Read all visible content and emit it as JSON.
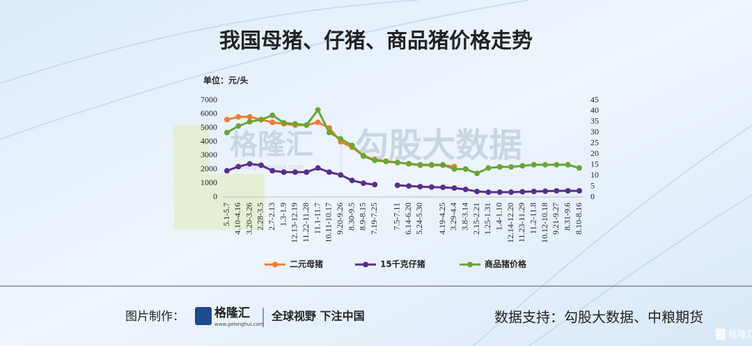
{
  "chart_data": {
    "type": "line",
    "title": "我国母猪、仔猪、商品猪价格走势",
    "unit_label": "单位：元/头",
    "categories": [
      "5.1-5.7",
      "4.10-4.16",
      "3.20-3.26",
      "2.28-3.5",
      "2.7-2.13",
      "1.3-1.9",
      "12.13-12.19",
      "11.22-11.28",
      "11.1-11.7",
      "10.11-10.17",
      "9.20-9.26",
      "8.30-9.5",
      "8.9-8.15",
      "7.19-7.25",
      null,
      "7.5-7.11",
      "6.14-6.20",
      "5.24-5.30",
      null,
      "4.19-4.25",
      "3.29-4.4",
      "3.8-3.14",
      "2.15-2.21",
      "1.25-1.31",
      "1.4-1.10",
      "12.14-12.20",
      "11.23-11.29",
      "11.2-11.8",
      "10.12-10.18",
      "9.21-9.27",
      "8.31-9.6",
      "8.10-8.16"
    ],
    "series": [
      {
        "name": "二元母猪",
        "color": "#f07b2c",
        "values": [
          5600,
          5800,
          5800,
          5600,
          5400,
          5300,
          5200,
          5200,
          5400,
          5000,
          4000,
          3600,
          3000,
          2700,
          2600,
          2500,
          2400,
          2300,
          2300,
          2300,
          2200,
          null,
          null,
          null,
          null,
          null,
          null,
          null,
          null,
          null,
          null,
          null
        ]
      },
      {
        "name": "15千克仔猪",
        "color": "#5b2d8c",
        "values": [
          1900,
          2200,
          2400,
          2300,
          1900,
          1800,
          1800,
          1800,
          2100,
          1800,
          1600,
          1200,
          1000,
          900,
          null,
          850,
          800,
          750,
          720,
          700,
          650,
          550,
          400,
          350,
          350,
          350,
          380,
          400,
          420,
          450,
          450,
          450
        ]
      },
      {
        "name": "商品猪价格",
        "color": "#6aa535",
        "axis": "y2",
        "values": [
          30,
          33,
          35,
          36,
          38,
          34.5,
          34,
          33.5,
          40.5,
          30,
          27,
          24,
          19,
          17,
          16.5,
          16,
          15.5,
          15,
          15,
          15,
          13,
          13,
          11,
          13.5,
          14,
          14,
          14.5,
          15,
          15,
          15,
          15,
          13.5
        ]
      }
    ],
    "ylim": [
      0,
      7000
    ],
    "yticks": [
      0,
      1000,
      2000,
      3000,
      4000,
      5000,
      6000,
      7000
    ],
    "y2lim": [
      0,
      45
    ],
    "y2ticks": [
      0,
      5,
      10,
      15,
      20,
      25,
      30,
      35,
      40,
      45
    ],
    "grid": false,
    "legend": "bottom"
  },
  "watermark": {
    "brand": "格隆汇",
    "site": "www.gelonghui.com",
    "partner": "勾股大数据"
  },
  "footer": {
    "made_by": "图片制作：",
    "brand": "格隆汇",
    "site": "www.gelonghui.com",
    "slogan": "全球视野 下注中国",
    "source": "数据支持：勾股大数据、中粮期货",
    "corner": "格隆汇"
  }
}
